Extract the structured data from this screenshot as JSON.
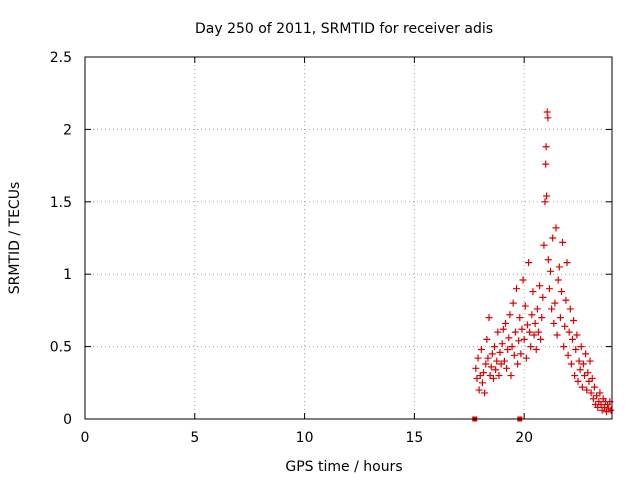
{
  "colors": {
    "series": "#e00000",
    "grid": "#a0a0a0",
    "axis": "#000000"
  },
  "chart_data": {
    "type": "scatter",
    "title": "Day 250 of 2011, SRMTID for receiver adis",
    "xlabel": "GPS time / hours",
    "ylabel": "SRMTID / TECUs",
    "xlim": [
      0,
      24
    ],
    "ylim": [
      0,
      2.5
    ],
    "x_ticks": [
      0,
      5,
      10,
      15,
      20
    ],
    "x_tick_labels": [
      "0",
      "5",
      "10",
      "15",
      "20"
    ],
    "y_ticks": [
      0,
      0.5,
      1,
      1.5,
      2,
      2.5
    ],
    "y_tick_labels": [
      "0",
      "0.5",
      "1",
      "1.5",
      "2",
      "2.5"
    ],
    "grid": true,
    "marker": "+",
    "series": [
      {
        "name": "SRMTID",
        "points": [
          [
            17.8,
            0.35
          ],
          [
            17.85,
            0.28
          ],
          [
            17.9,
            0.42
          ],
          [
            17.95,
            0.2
          ],
          [
            18.0,
            0.3
          ],
          [
            18.05,
            0.48
          ],
          [
            18.1,
            0.25
          ],
          [
            18.15,
            0.32
          ],
          [
            18.2,
            0.18
          ],
          [
            18.25,
            0.38
          ],
          [
            18.3,
            0.55
          ],
          [
            18.35,
            0.42
          ],
          [
            18.4,
            0.7
          ],
          [
            18.45,
            0.3
          ],
          [
            18.5,
            0.36
          ],
          [
            18.55,
            0.45
          ],
          [
            18.6,
            0.28
          ],
          [
            18.65,
            0.5
          ],
          [
            18.7,
            0.34
          ],
          [
            18.75,
            0.4
          ],
          [
            18.8,
            0.6
          ],
          [
            18.85,
            0.3
          ],
          [
            18.9,
            0.46
          ],
          [
            18.95,
            0.38
          ],
          [
            19.0,
            0.52
          ],
          [
            19.05,
            0.62
          ],
          [
            19.1,
            0.4
          ],
          [
            19.15,
            0.66
          ],
          [
            19.2,
            0.35
          ],
          [
            19.25,
            0.48
          ],
          [
            19.3,
            0.56
          ],
          [
            19.35,
            0.72
          ],
          [
            19.4,
            0.3
          ],
          [
            19.45,
            0.5
          ],
          [
            19.5,
            0.8
          ],
          [
            19.55,
            0.44
          ],
          [
            19.6,
            0.6
          ],
          [
            19.65,
            0.9
          ],
          [
            19.7,
            0.38
          ],
          [
            19.75,
            0.54
          ],
          [
            19.8,
            0.7
          ],
          [
            19.85,
            0.45
          ],
          [
            19.9,
            0.62
          ],
          [
            19.95,
            0.96
          ],
          [
            20.0,
            0.55
          ],
          [
            20.05,
            0.78
          ],
          [
            20.1,
            0.42
          ],
          [
            20.15,
            0.65
          ],
          [
            20.2,
            1.08
          ],
          [
            20.25,
            0.6
          ],
          [
            20.3,
            0.5
          ],
          [
            20.35,
            0.72
          ],
          [
            20.4,
            0.88
          ],
          [
            20.45,
            0.58
          ],
          [
            20.5,
            0.66
          ],
          [
            20.55,
            0.48
          ],
          [
            20.6,
            0.76
          ],
          [
            20.65,
            0.6
          ],
          [
            20.7,
            0.92
          ],
          [
            20.75,
            0.55
          ],
          [
            20.8,
            0.7
          ],
          [
            20.85,
            0.84
          ],
          [
            20.9,
            1.2
          ],
          [
            20.95,
            1.5
          ],
          [
            20.98,
            1.76
          ],
          [
            21.0,
            1.88
          ],
          [
            21.02,
            1.54
          ],
          [
            21.05,
            2.12
          ],
          [
            21.08,
            2.08
          ],
          [
            21.1,
            1.1
          ],
          [
            21.15,
            0.9
          ],
          [
            21.2,
            1.02
          ],
          [
            21.25,
            0.76
          ],
          [
            21.3,
            1.25
          ],
          [
            21.35,
            0.66
          ],
          [
            21.4,
            0.8
          ],
          [
            21.45,
            1.32
          ],
          [
            21.5,
            0.58
          ],
          [
            21.55,
            0.96
          ],
          [
            21.6,
            1.05
          ],
          [
            21.65,
            0.7
          ],
          [
            21.7,
            0.88
          ],
          [
            21.75,
            1.22
          ],
          [
            21.8,
            0.5
          ],
          [
            21.85,
            0.64
          ],
          [
            21.9,
            0.82
          ],
          [
            21.95,
            1.08
          ],
          [
            22.0,
            0.44
          ],
          [
            22.05,
            0.6
          ],
          [
            22.1,
            0.76
          ],
          [
            22.15,
            0.38
          ],
          [
            22.2,
            0.55
          ],
          [
            22.25,
            0.68
          ],
          [
            22.3,
            0.3
          ],
          [
            22.35,
            0.48
          ],
          [
            22.4,
            0.58
          ],
          [
            22.45,
            0.26
          ],
          [
            22.5,
            0.4
          ],
          [
            22.55,
            0.34
          ],
          [
            22.6,
            0.5
          ],
          [
            22.65,
            0.22
          ],
          [
            22.7,
            0.38
          ],
          [
            22.75,
            0.3
          ],
          [
            22.8,
            0.45
          ],
          [
            22.85,
            0.2
          ],
          [
            22.9,
            0.32
          ],
          [
            22.95,
            0.26
          ],
          [
            23.0,
            0.4
          ],
          [
            23.05,
            0.18
          ],
          [
            23.1,
            0.28
          ],
          [
            23.15,
            0.14
          ],
          [
            23.2,
            0.22
          ],
          [
            23.25,
            0.1
          ],
          [
            23.3,
            0.16
          ],
          [
            23.35,
            0.08
          ],
          [
            23.4,
            0.12
          ],
          [
            23.45,
            0.18
          ],
          [
            23.5,
            0.1
          ],
          [
            23.55,
            0.06
          ],
          [
            23.6,
            0.14
          ],
          [
            23.65,
            0.08
          ],
          [
            23.7,
            0.12
          ],
          [
            23.75,
            0.05
          ],
          [
            23.8,
            0.1
          ],
          [
            23.85,
            0.07
          ],
          [
            23.9,
            0.12
          ],
          [
            23.95,
            0.06
          ]
        ]
      },
      {
        "name": "zero-markers",
        "marker": "square",
        "points": [
          [
            17.75,
            0.0
          ],
          [
            19.8,
            0.0
          ]
        ]
      }
    ]
  }
}
